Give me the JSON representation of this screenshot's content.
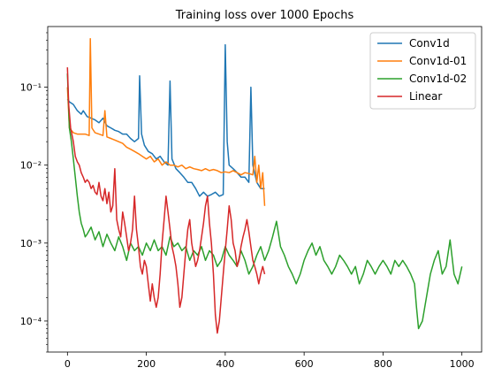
{
  "chart_data": {
    "type": "line",
    "title": "Training loss over 1000 Epochs",
    "xlabel": "",
    "ylabel": "",
    "xlim": [
      -50,
      1050
    ],
    "ylim": [
      4e-05,
      0.6
    ],
    "yscale": "log",
    "xticks": [
      0,
      200,
      400,
      600,
      800,
      1000
    ],
    "xtick_labels": [
      "0",
      "200",
      "400",
      "600",
      "800",
      "1000"
    ],
    "yticks": [
      0.0001,
      0.001,
      0.01,
      0.1
    ],
    "ytick_labels": [
      "10⁻⁴",
      "10⁻³",
      "10⁻²",
      "10⁻¹"
    ],
    "grid": false,
    "legend_position": "top-right",
    "series": [
      {
        "name": "Conv1d",
        "color": "#1f77b4",
        "x": [
          0,
          5,
          15,
          25,
          35,
          40,
          50,
          60,
          70,
          80,
          90,
          100,
          110,
          120,
          130,
          140,
          150,
          160,
          170,
          180,
          183,
          188,
          195,
          205,
          215,
          225,
          235,
          245,
          255,
          260,
          265,
          275,
          285,
          295,
          305,
          315,
          325,
          335,
          345,
          355,
          365,
          375,
          385,
          395,
          400,
          405,
          410,
          420,
          430,
          440,
          450,
          460,
          465,
          470,
          480,
          490,
          500
        ],
        "y": [
          0.07,
          0.065,
          0.06,
          0.05,
          0.045,
          0.05,
          0.042,
          0.04,
          0.038,
          0.035,
          0.04,
          0.032,
          0.03,
          0.028,
          0.027,
          0.025,
          0.025,
          0.022,
          0.02,
          0.022,
          0.14,
          0.025,
          0.018,
          0.015,
          0.014,
          0.012,
          0.013,
          0.011,
          0.01,
          0.12,
          0.012,
          0.009,
          0.008,
          0.007,
          0.006,
          0.006,
          0.005,
          0.004,
          0.0045,
          0.004,
          0.0042,
          0.0045,
          0.004,
          0.0042,
          0.35,
          0.02,
          0.01,
          0.009,
          0.008,
          0.007,
          0.007,
          0.006,
          0.1,
          0.01,
          0.006,
          0.005,
          0.005
        ]
      },
      {
        "name": "Conv1d-01",
        "color": "#ff7f0e",
        "x": [
          0,
          5,
          15,
          25,
          35,
          45,
          55,
          58,
          62,
          70,
          80,
          90,
          95,
          100,
          110,
          120,
          130,
          140,
          150,
          160,
          170,
          180,
          190,
          200,
          210,
          220,
          230,
          240,
          250,
          260,
          270,
          280,
          290,
          300,
          310,
          320,
          330,
          340,
          350,
          360,
          370,
          380,
          390,
          400,
          410,
          420,
          430,
          440,
          450,
          460,
          470,
          475,
          480,
          485,
          490,
          495,
          500
        ],
        "y": [
          0.1,
          0.03,
          0.026,
          0.025,
          0.025,
          0.025,
          0.024,
          0.42,
          0.03,
          0.026,
          0.025,
          0.024,
          0.05,
          0.023,
          0.022,
          0.021,
          0.02,
          0.019,
          0.017,
          0.016,
          0.015,
          0.014,
          0.013,
          0.012,
          0.013,
          0.011,
          0.012,
          0.01,
          0.011,
          0.01,
          0.01,
          0.0095,
          0.01,
          0.009,
          0.0095,
          0.009,
          0.0088,
          0.0085,
          0.009,
          0.0085,
          0.0088,
          0.0085,
          0.008,
          0.0082,
          0.008,
          0.0085,
          0.008,
          0.0075,
          0.008,
          0.0078,
          0.0075,
          0.013,
          0.006,
          0.01,
          0.005,
          0.008,
          0.003
        ]
      },
      {
        "name": "Conv1d-02",
        "color": "#2ca02c",
        "x": [
          0,
          5,
          10,
          15,
          20,
          25,
          30,
          35,
          40,
          45,
          50,
          60,
          70,
          80,
          90,
          100,
          110,
          120,
          130,
          140,
          150,
          160,
          170,
          180,
          190,
          200,
          210,
          220,
          230,
          240,
          250,
          260,
          270,
          280,
          290,
          300,
          310,
          320,
          330,
          340,
          350,
          360,
          370,
          380,
          390,
          400,
          410,
          420,
          430,
          440,
          450,
          460,
          470,
          480,
          490,
          500,
          510,
          520,
          530,
          540,
          550,
          560,
          570,
          580,
          590,
          600,
          610,
          620,
          630,
          640,
          650,
          660,
          670,
          680,
          690,
          700,
          710,
          720,
          730,
          740,
          750,
          760,
          770,
          780,
          790,
          800,
          810,
          820,
          830,
          840,
          850,
          860,
          870,
          880,
          885,
          890,
          900,
          910,
          920,
          930,
          940,
          950,
          960,
          970,
          980,
          990,
          1000
        ],
        "y": [
          0.15,
          0.03,
          0.02,
          0.012,
          0.007,
          0.004,
          0.0025,
          0.0018,
          0.0015,
          0.0012,
          0.0013,
          0.0016,
          0.0011,
          0.0014,
          0.0009,
          0.0013,
          0.001,
          0.0008,
          0.0012,
          0.0009,
          0.0006,
          0.001,
          0.0008,
          0.0009,
          0.0007,
          0.001,
          0.0008,
          0.0011,
          0.0008,
          0.0009,
          0.0007,
          0.0012,
          0.0009,
          0.001,
          0.0008,
          0.0009,
          0.0006,
          0.0008,
          0.0007,
          0.0009,
          0.0006,
          0.0008,
          0.0007,
          0.0005,
          0.0006,
          0.0009,
          0.0007,
          0.0006,
          0.0005,
          0.0008,
          0.0006,
          0.0004,
          0.0005,
          0.0007,
          0.0009,
          0.0006,
          0.0008,
          0.0012,
          0.0019,
          0.0009,
          0.0007,
          0.0005,
          0.0004,
          0.0003,
          0.0004,
          0.0006,
          0.0008,
          0.001,
          0.0007,
          0.0009,
          0.0006,
          0.0005,
          0.0004,
          0.0005,
          0.0007,
          0.0006,
          0.0005,
          0.0004,
          0.0005,
          0.0003,
          0.0004,
          0.0006,
          0.0005,
          0.0004,
          0.0005,
          0.0006,
          0.0005,
          0.0004,
          0.0006,
          0.0005,
          0.0006,
          0.0005,
          0.0004,
          0.0003,
          0.00015,
          8e-05,
          0.0001,
          0.0002,
          0.0004,
          0.0006,
          0.0008,
          0.0004,
          0.0005,
          0.0011,
          0.0004,
          0.0003,
          0.0005
        ]
      },
      {
        "name": "Linear",
        "color": "#d62728",
        "x": [
          0,
          3,
          8,
          15,
          20,
          25,
          30,
          35,
          40,
          45,
          50,
          55,
          60,
          65,
          70,
          75,
          80,
          85,
          90,
          95,
          100,
          105,
          110,
          115,
          120,
          125,
          130,
          135,
          140,
          145,
          150,
          155,
          160,
          165,
          170,
          175,
          180,
          185,
          190,
          195,
          200,
          205,
          210,
          215,
          220,
          225,
          230,
          235,
          240,
          245,
          250,
          255,
          260,
          265,
          270,
          275,
          280,
          285,
          290,
          295,
          300,
          305,
          310,
          315,
          320,
          325,
          330,
          335,
          340,
          345,
          350,
          355,
          360,
          365,
          370,
          375,
          380,
          385,
          390,
          395,
          400,
          405,
          410,
          415,
          420,
          425,
          430,
          435,
          440,
          445,
          450,
          455,
          460,
          465,
          470,
          475,
          480,
          485,
          490,
          495,
          500
        ],
        "y": [
          0.18,
          0.06,
          0.03,
          0.02,
          0.013,
          0.011,
          0.01,
          0.008,
          0.007,
          0.006,
          0.0065,
          0.006,
          0.005,
          0.0055,
          0.0045,
          0.0042,
          0.006,
          0.004,
          0.0035,
          0.005,
          0.0032,
          0.0045,
          0.0025,
          0.003,
          0.009,
          0.002,
          0.0015,
          0.0012,
          0.0025,
          0.0018,
          0.0012,
          0.0008,
          0.001,
          0.0015,
          0.004,
          0.0015,
          0.0009,
          0.0005,
          0.0004,
          0.0006,
          0.0005,
          0.0003,
          0.00018,
          0.0003,
          0.0002,
          0.00015,
          0.0002,
          0.0004,
          0.001,
          0.002,
          0.004,
          0.0025,
          0.0015,
          0.0009,
          0.0007,
          0.0005,
          0.0003,
          0.00015,
          0.0002,
          0.0004,
          0.0008,
          0.0015,
          0.002,
          0.001,
          0.0007,
          0.0005,
          0.0006,
          0.0008,
          0.0012,
          0.0018,
          0.003,
          0.004,
          0.0018,
          0.001,
          0.0004,
          0.00012,
          7e-05,
          0.0001,
          0.0002,
          0.0004,
          0.0008,
          0.0015,
          0.003,
          0.002,
          0.001,
          0.0008,
          0.0005,
          0.0006,
          0.0009,
          0.0012,
          0.0015,
          0.002,
          0.0014,
          0.0009,
          0.0006,
          0.0005,
          0.0004,
          0.0003,
          0.0004,
          0.0005,
          0.0004
        ]
      }
    ]
  }
}
